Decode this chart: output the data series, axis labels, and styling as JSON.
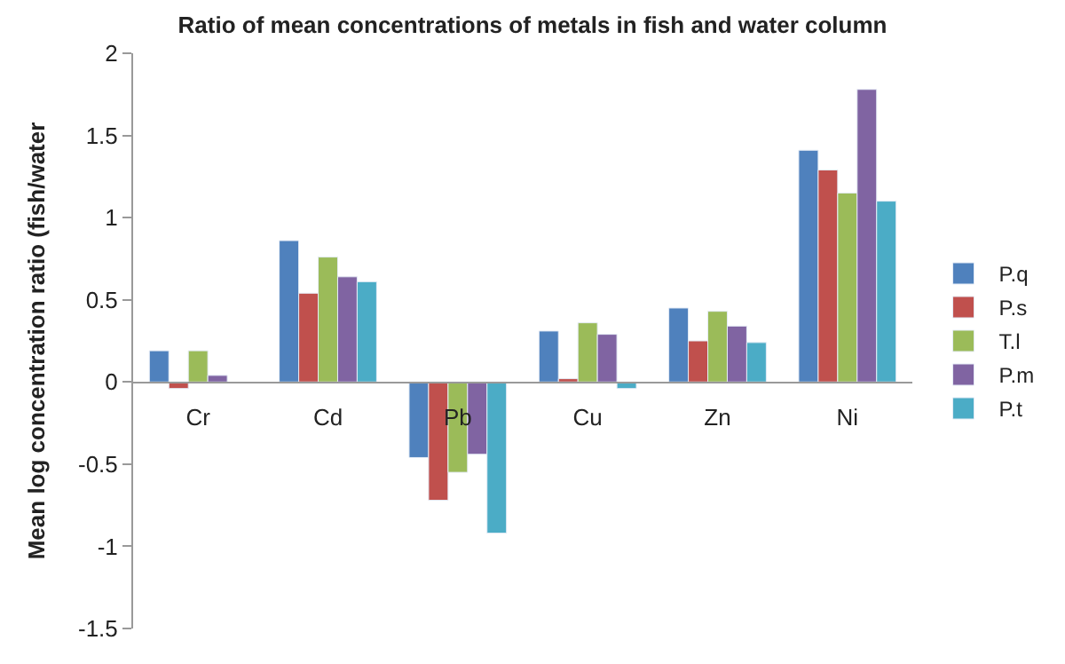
{
  "chart_data": {
    "type": "bar",
    "title": "Ratio of mean concentrations of metals in fish and water column",
    "ylabel": "Mean log concentration ratio (fish/water",
    "categories": [
      "Cr",
      "Cd",
      "Pb",
      "Cu",
      "Zn",
      "Ni"
    ],
    "series": [
      {
        "name": "P.q",
        "color": "#4f81bd",
        "values": [
          0.19,
          0.86,
          -0.46,
          0.31,
          0.45,
          1.41
        ]
      },
      {
        "name": "P.s",
        "color": "#c0504d",
        "values": [
          -0.04,
          0.54,
          -0.72,
          0.02,
          0.25,
          1.29
        ]
      },
      {
        "name": "T.l",
        "color": "#9bbb59",
        "values": [
          0.19,
          0.76,
          -0.55,
          0.36,
          0.43,
          1.15
        ]
      },
      {
        "name": "P.m",
        "color": "#8064a2",
        "values": [
          0.04,
          0.64,
          -0.44,
          0.29,
          0.34,
          1.78
        ]
      },
      {
        "name": "P.t",
        "color": "#4bacc6",
        "values": [
          null,
          0.61,
          -0.92,
          -0.04,
          0.24,
          1.1
        ]
      }
    ],
    "ylim": [
      -1.5,
      2
    ],
    "yticks": [
      -1.5,
      -1,
      -0.5,
      0,
      0.5,
      1,
      1.5,
      2
    ],
    "legend": "right"
  }
}
